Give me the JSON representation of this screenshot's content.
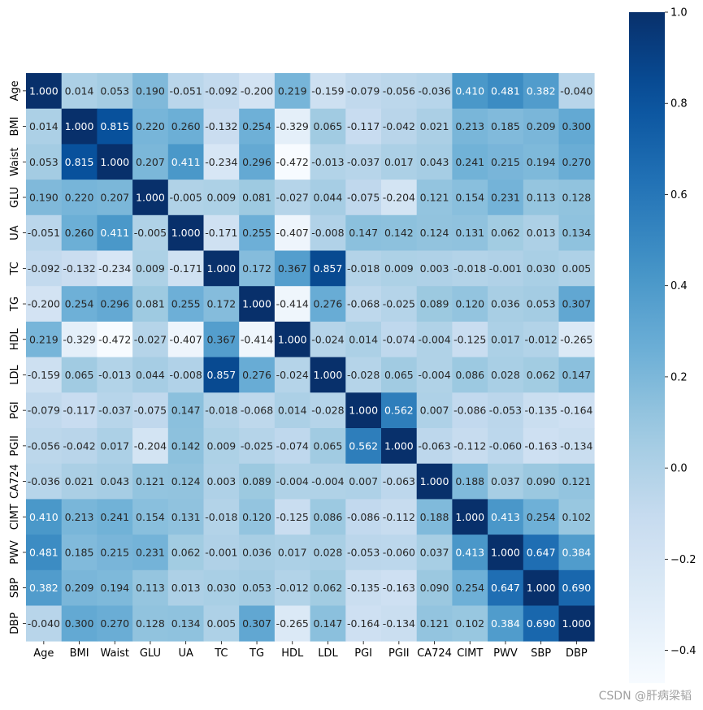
{
  "chart_data": {
    "type": "heatmap",
    "title": "",
    "xlabel": "",
    "ylabel": "",
    "labels": [
      "Age",
      "BMI",
      "Waist",
      "GLU",
      "UA",
      "TC",
      "TG",
      "HDL",
      "LDL",
      "PGI",
      "PGII",
      "CA724",
      "CIMT",
      "PWV",
      "SBP",
      "DBP"
    ],
    "matrix": [
      [
        "1.000",
        "0.014",
        "0.053",
        "0.190",
        "-0.051",
        "-0.092",
        "-0.200",
        "0.219",
        "-0.159",
        "-0.079",
        "-0.056",
        "-0.036",
        "0.410",
        "0.481",
        "0.382",
        "-0.040"
      ],
      [
        "0.014",
        "1.000",
        "0.815",
        "0.220",
        "0.260",
        "-0.132",
        "0.254",
        "-0.329",
        "0.065",
        "-0.117",
        "-0.042",
        "0.021",
        "0.213",
        "0.185",
        "0.209",
        "0.300"
      ],
      [
        "0.053",
        "0.815",
        "1.000",
        "0.207",
        "0.411",
        "-0.234",
        "0.296",
        "-0.472",
        "-0.013",
        "-0.037",
        "0.017",
        "0.043",
        "0.241",
        "0.215",
        "0.194",
        "0.270"
      ],
      [
        "0.190",
        "0.220",
        "0.207",
        "1.000",
        "-0.005",
        "0.009",
        "0.081",
        "-0.027",
        "0.044",
        "-0.075",
        "-0.204",
        "0.121",
        "0.154",
        "0.231",
        "0.113",
        "0.128"
      ],
      [
        "-0.051",
        "0.260",
        "0.411",
        "-0.005",
        "1.000",
        "-0.171",
        "0.255",
        "-0.407",
        "-0.008",
        "0.147",
        "0.142",
        "0.124",
        "0.131",
        "0.062",
        "0.013",
        "0.134"
      ],
      [
        "-0.092",
        "-0.132",
        "-0.234",
        "0.009",
        "-0.171",
        "1.000",
        "0.172",
        "0.367",
        "0.857",
        "-0.018",
        "0.009",
        "0.003",
        "-0.018",
        "-0.001",
        "0.030",
        "0.005"
      ],
      [
        "-0.200",
        "0.254",
        "0.296",
        "0.081",
        "0.255",
        "0.172",
        "1.000",
        "-0.414",
        "0.276",
        "-0.068",
        "-0.025",
        "0.089",
        "0.120",
        "0.036",
        "0.053",
        "0.307"
      ],
      [
        "0.219",
        "-0.329",
        "-0.472",
        "-0.027",
        "-0.407",
        "0.367",
        "-0.414",
        "1.000",
        "-0.024",
        "0.014",
        "-0.074",
        "-0.004",
        "-0.125",
        "0.017",
        "-0.012",
        "-0.265"
      ],
      [
        "-0.159",
        "0.065",
        "-0.013",
        "0.044",
        "-0.008",
        "0.857",
        "0.276",
        "-0.024",
        "1.000",
        "-0.028",
        "0.065",
        "-0.004",
        "0.086",
        "0.028",
        "0.062",
        "0.147"
      ],
      [
        "-0.079",
        "-0.117",
        "-0.037",
        "-0.075",
        "0.147",
        "-0.018",
        "-0.068",
        "0.014",
        "-0.028",
        "1.000",
        "0.562",
        "0.007",
        "-0.086",
        "-0.053",
        "-0.135",
        "-0.164"
      ],
      [
        "-0.056",
        "-0.042",
        "0.017",
        "-0.204",
        "0.142",
        "0.009",
        "-0.025",
        "-0.074",
        "0.065",
        "0.562",
        "1.000",
        "-0.063",
        "-0.112",
        "-0.060",
        "-0.163",
        "-0.134"
      ],
      [
        "-0.036",
        "0.021",
        "0.043",
        "0.121",
        "0.124",
        "0.003",
        "0.089",
        "-0.004",
        "-0.004",
        "0.007",
        "-0.063",
        "1.000",
        "0.188",
        "0.037",
        "0.090",
        "0.121"
      ],
      [
        "0.410",
        "0.213",
        "0.241",
        "0.154",
        "0.131",
        "-0.018",
        "0.120",
        "-0.125",
        "0.086",
        "-0.086",
        "-0.112",
        "0.188",
        "1.000",
        "0.413",
        "0.254",
        "0.102"
      ],
      [
        "0.481",
        "0.185",
        "0.215",
        "0.231",
        "0.062",
        "-0.001",
        "0.036",
        "0.017",
        "0.028",
        "-0.053",
        "-0.060",
        "0.037",
        "0.413",
        "1.000",
        "0.647",
        "0.384"
      ],
      [
        "0.382",
        "0.209",
        "0.194",
        "0.113",
        "0.013",
        "0.030",
        "0.053",
        "-0.012",
        "0.062",
        "-0.135",
        "-0.163",
        "0.090",
        "0.254",
        "0.647",
        "1.000",
        "0.690"
      ],
      [
        "-0.040",
        "0.300",
        "0.270",
        "0.128",
        "0.134",
        "0.005",
        "0.307",
        "-0.265",
        "0.147",
        "-0.164",
        "-0.134",
        "0.121",
        "0.102",
        "0.384",
        "0.690",
        "1.000"
      ]
    ],
    "colormap": "Blues",
    "color_range": [
      -0.472,
      1.0
    ],
    "colorbar_ticks": [
      "1.0",
      "0.8",
      "0.6",
      "0.4",
      "0.2",
      "0.0",
      "−0.2",
      "−0.4"
    ],
    "colorbar_tick_values": [
      1.0,
      0.8,
      0.6,
      0.4,
      0.2,
      0.0,
      -0.2,
      -0.4
    ],
    "colorbar_position": "right",
    "grid": false
  },
  "watermark": "CSDN @肝病梁韬"
}
